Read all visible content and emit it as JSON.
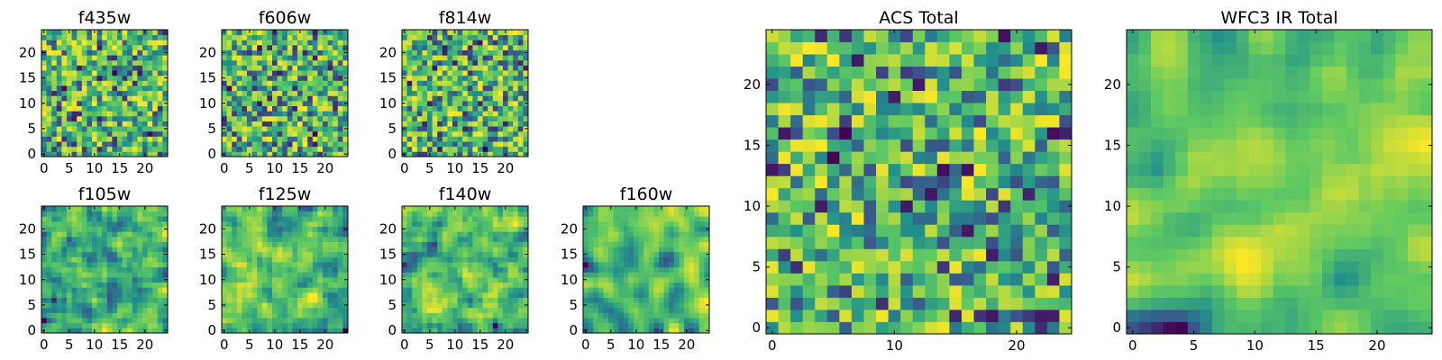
{
  "chart_data": [
    {
      "type": "heatmap",
      "title": "f435w",
      "xticks": [
        0,
        5,
        10,
        15,
        20
      ],
      "yticks": [
        0,
        5,
        10,
        15,
        20
      ],
      "xlim": [
        0,
        25
      ],
      "ylim": [
        0,
        25
      ],
      "grid": false,
      "colormap": "viridis",
      "seed": 11,
      "smoothness": 0
    },
    {
      "type": "heatmap",
      "title": "f606w",
      "xticks": [
        0,
        5,
        10,
        15,
        20
      ],
      "yticks": [
        0,
        5,
        10,
        15,
        20
      ],
      "xlim": [
        0,
        25
      ],
      "ylim": [
        0,
        25
      ],
      "grid": false,
      "colormap": "viridis",
      "seed": 23,
      "smoothness": 0
    },
    {
      "type": "heatmap",
      "title": "f814w",
      "xticks": [
        0,
        5,
        10,
        15,
        20
      ],
      "yticks": [
        0,
        5,
        10,
        15,
        20
      ],
      "xlim": [
        0,
        25
      ],
      "ylim": [
        0,
        25
      ],
      "grid": false,
      "colormap": "viridis",
      "seed": 37,
      "smoothness": 0
    },
    {
      "type": "heatmap",
      "title": "f105w",
      "xticks": [
        0,
        5,
        10,
        15,
        20
      ],
      "yticks": [
        0,
        5,
        10,
        15,
        20
      ],
      "xlim": [
        0,
        25
      ],
      "ylim": [
        0,
        25
      ],
      "grid": false,
      "colormap": "viridis",
      "seed": 41,
      "smoothness": 1
    },
    {
      "type": "heatmap",
      "title": "f125w",
      "xticks": [
        0,
        5,
        10,
        15,
        20
      ],
      "yticks": [
        0,
        5,
        10,
        15,
        20
      ],
      "xlim": [
        0,
        25
      ],
      "ylim": [
        0,
        25
      ],
      "grid": false,
      "colormap": "viridis",
      "seed": 53,
      "smoothness": 1
    },
    {
      "type": "heatmap",
      "title": "f140w",
      "xticks": [
        0,
        5,
        10,
        15,
        20
      ],
      "yticks": [
        0,
        5,
        10,
        15,
        20
      ],
      "xlim": [
        0,
        25
      ],
      "ylim": [
        0,
        25
      ],
      "grid": false,
      "colormap": "viridis",
      "seed": 67,
      "smoothness": 1
    },
    {
      "type": "heatmap",
      "title": "f160w",
      "xticks": [
        0,
        5,
        10,
        15,
        20
      ],
      "yticks": [
        0,
        5,
        10,
        15,
        20
      ],
      "xlim": [
        0,
        25
      ],
      "ylim": [
        0,
        25
      ],
      "grid": false,
      "colormap": "viridis",
      "seed": 79,
      "smoothness": 2
    },
    {
      "type": "heatmap",
      "title": "ACS Total",
      "xticks": [
        0,
        10,
        20
      ],
      "yticks": [
        0,
        5,
        10,
        15,
        20
      ],
      "xlim": [
        0,
        25
      ],
      "ylim": [
        0,
        25
      ],
      "grid": false,
      "colormap": "viridis",
      "seed": 83,
      "smoothness": 0
    },
    {
      "type": "heatmap",
      "title": "WFC3 IR Total",
      "xticks": [
        0,
        5,
        10,
        15,
        20
      ],
      "yticks": [
        0,
        5,
        10,
        15,
        20
      ],
      "xlim": [
        0,
        25
      ],
      "ylim": [
        0,
        25
      ],
      "grid": false,
      "colormap": "viridis",
      "seed": 97,
      "smoothness": 2
    }
  ],
  "colors": {
    "viridis_stops": [
      "#440154",
      "#3b528b",
      "#21918c",
      "#5ec962",
      "#fde725"
    ]
  }
}
